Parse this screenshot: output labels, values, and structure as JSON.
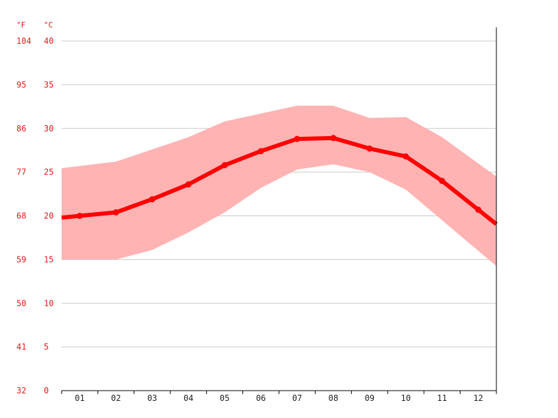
{
  "chart_data": {
    "type": "line",
    "title": "",
    "units": {
      "left": "°F",
      "right": "°C"
    },
    "categories": [
      "01",
      "02",
      "03",
      "04",
      "05",
      "06",
      "07",
      "08",
      "09",
      "10",
      "11",
      "12"
    ],
    "y_celsius_ticks": [
      "0",
      "5",
      "10",
      "15",
      "20",
      "25",
      "30",
      "35",
      "40"
    ],
    "y_fahrenheit_ticks": [
      "32",
      "41",
      "50",
      "59",
      "68",
      "77",
      "86",
      "95",
      "104"
    ],
    "ylim": [
      0,
      40
    ],
    "grid": true,
    "legend": "none",
    "series": [
      {
        "values": [
          20.0,
          20.4,
          21.9,
          23.6,
          25.8,
          27.4,
          28.8,
          28.9,
          27.7,
          26.8,
          24.0,
          20.7
        ]
      }
    ],
    "band": {
      "upper": [
        25.7,
        26.2,
        27.6,
        29.0,
        30.8,
        31.7,
        32.6,
        32.6,
        31.2,
        31.3,
        29.0,
        26.0
      ],
      "lower": [
        15.0,
        15.0,
        16.1,
        18.1,
        20.4,
        23.2,
        25.3,
        25.9,
        25.0,
        23.0,
        19.5,
        16.0
      ]
    },
    "colors": {
      "line": "#ff0000",
      "band": "#ffb3b3",
      "tick_text": "#e31a1c"
    }
  }
}
